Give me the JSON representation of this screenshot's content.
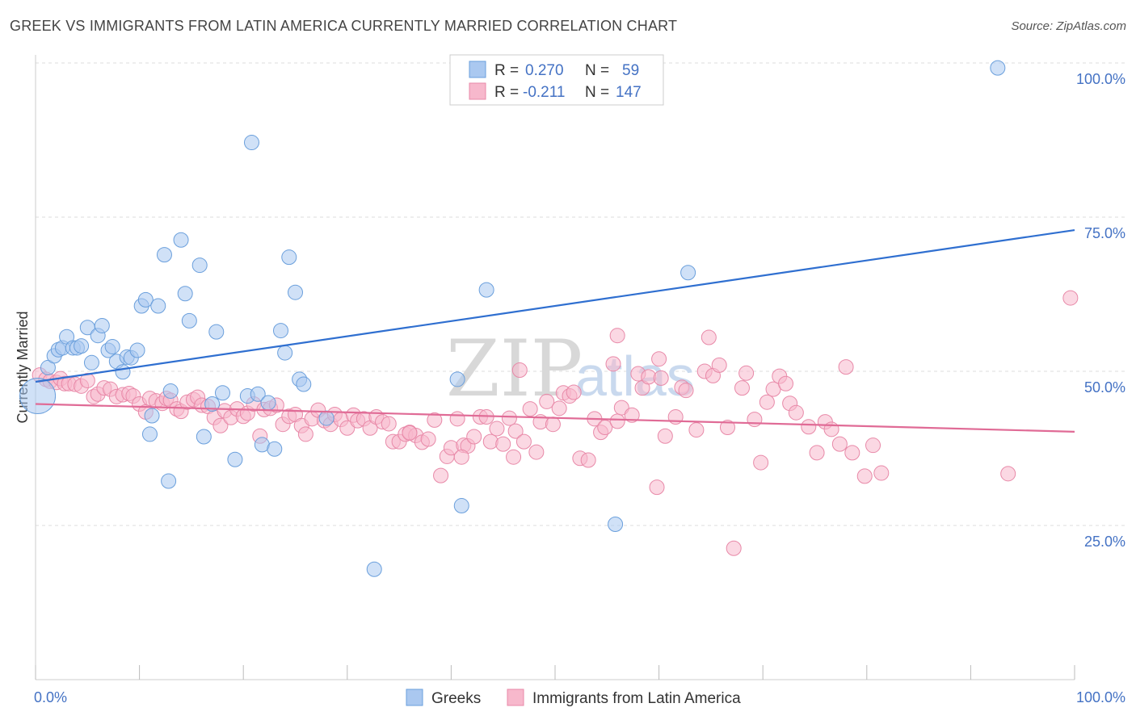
{
  "title": "GREEK VS IMMIGRANTS FROM LATIN AMERICA CURRENTLY MARRIED CORRELATION CHART",
  "source": "Source: ZipAtlas.com",
  "watermark": {
    "zip": "ZIP",
    "atlas": "atlas"
  },
  "legend_top": {
    "items": [
      {
        "r_label": "R =",
        "r_value": "0.270",
        "n_label": "N =",
        "n_value": "59",
        "color": "#aac8f0"
      },
      {
        "r_label": "R =",
        "r_value": "-0.211",
        "n_label": "N =",
        "n_value": "147",
        "color": "#f7b8cc"
      }
    ]
  },
  "chart_data": {
    "type": "scatter",
    "title": "GREEK VS IMMIGRANTS FROM LATIN AMERICA CURRENTLY MARRIED CORRELATION CHART",
    "xlabel": "",
    "ylabel": "Currently Married",
    "xlim": [
      0,
      100
    ],
    "ylim": [
      0,
      100
    ],
    "x_tick_labels": [
      "0.0%",
      "100.0%"
    ],
    "y_ticks": [
      {
        "value": 25,
        "label": "25.0%"
      },
      {
        "value": 50,
        "label": "50.0%"
      },
      {
        "value": 75,
        "label": "75.0%"
      },
      {
        "value": 100,
        "label": "100.0%"
      }
    ],
    "grid": true,
    "legend_position": "bottom",
    "series": [
      {
        "name": "Greeks",
        "color": "#aac8f0",
        "stroke": "#6a9fdc",
        "line_color": "#2f6fd0",
        "trend": {
          "x0": 0,
          "y0": 48.3,
          "x1": 100,
          "y1": 72.9
        },
        "points": [
          [
            0.2,
            46.0
          ],
          [
            1.2,
            50.6
          ],
          [
            1.8,
            52.5
          ],
          [
            2.2,
            53.5
          ],
          [
            2.6,
            53.8
          ],
          [
            3.0,
            55.6
          ],
          [
            3.6,
            53.8
          ],
          [
            4.0,
            53.8
          ],
          [
            4.4,
            54.1
          ],
          [
            5.0,
            57.1
          ],
          [
            5.4,
            51.4
          ],
          [
            6.0,
            55.8
          ],
          [
            6.4,
            57.4
          ],
          [
            7.0,
            53.4
          ],
          [
            7.4,
            54.0
          ],
          [
            7.8,
            51.6
          ],
          [
            8.4,
            49.9
          ],
          [
            8.8,
            52.3
          ],
          [
            9.2,
            52.2
          ],
          [
            9.8,
            53.4
          ],
          [
            10.2,
            60.6
          ],
          [
            10.6,
            61.6
          ],
          [
            11.2,
            42.8
          ],
          [
            11.0,
            39.8
          ],
          [
            11.8,
            60.6
          ],
          [
            12.4,
            68.9
          ],
          [
            12.8,
            32.2
          ],
          [
            13.0,
            46.8
          ],
          [
            14.0,
            71.3
          ],
          [
            14.4,
            62.6
          ],
          [
            14.8,
            58.2
          ],
          [
            15.8,
            67.2
          ],
          [
            16.2,
            39.4
          ],
          [
            17.0,
            44.7
          ],
          [
            17.4,
            56.4
          ],
          [
            18.0,
            46.5
          ],
          [
            19.2,
            35.7
          ],
          [
            20.4,
            46.0
          ],
          [
            20.8,
            87.1
          ],
          [
            21.4,
            46.3
          ],
          [
            21.8,
            38.1
          ],
          [
            22.4,
            44.9
          ],
          [
            23.0,
            37.4
          ],
          [
            23.6,
            56.6
          ],
          [
            24.0,
            53.0
          ],
          [
            24.4,
            68.5
          ],
          [
            25.0,
            62.8
          ],
          [
            25.4,
            48.7
          ],
          [
            25.8,
            47.9
          ],
          [
            28.0,
            42.4
          ],
          [
            32.6,
            17.9
          ],
          [
            40.6,
            48.7
          ],
          [
            41.0,
            28.2
          ],
          [
            43.4,
            63.2
          ],
          [
            55.8,
            25.2
          ],
          [
            62.8,
            66.0
          ],
          [
            56.8,
            100.0
          ],
          [
            92.6,
            99.2
          ]
        ]
      },
      {
        "name": "Immigrants from Latin America",
        "color": "#f7b8cc",
        "stroke": "#e889a8",
        "line_color": "#e06b96",
        "trend": {
          "x0": 0,
          "y0": 44.7,
          "x1": 100,
          "y1": 40.2
        },
        "points": [
          [
            0.4,
            49.4
          ],
          [
            1.0,
            48.7
          ],
          [
            1.4,
            48.4
          ],
          [
            2.0,
            48.2
          ],
          [
            2.4,
            48.8
          ],
          [
            2.8,
            48.0
          ],
          [
            3.2,
            48.0
          ],
          [
            3.8,
            47.9
          ],
          [
            4.4,
            47.6
          ],
          [
            5.0,
            48.5
          ],
          [
            5.6,
            45.9
          ],
          [
            6.0,
            46.3
          ],
          [
            6.6,
            47.3
          ],
          [
            7.2,
            47.1
          ],
          [
            7.8,
            45.9
          ],
          [
            8.4,
            46.2
          ],
          [
            9.0,
            46.4
          ],
          [
            9.4,
            46.0
          ],
          [
            10.0,
            44.7
          ],
          [
            10.6,
            43.4
          ],
          [
            11.0,
            45.6
          ],
          [
            11.6,
            45.2
          ],
          [
            12.2,
            44.8
          ],
          [
            12.6,
            45.6
          ],
          [
            13.0,
            45.3
          ],
          [
            13.6,
            43.9
          ],
          [
            14.0,
            43.5
          ],
          [
            14.6,
            45.0
          ],
          [
            15.2,
            45.4
          ],
          [
            15.6,
            45.8
          ],
          [
            16.0,
            44.5
          ],
          [
            16.6,
            44.3
          ],
          [
            17.2,
            42.5
          ],
          [
            17.8,
            41.2
          ],
          [
            18.2,
            43.6
          ],
          [
            18.8,
            42.5
          ],
          [
            19.4,
            43.9
          ],
          [
            20.0,
            42.7
          ],
          [
            20.4,
            43.2
          ],
          [
            21.0,
            44.7
          ],
          [
            21.6,
            39.5
          ],
          [
            22.0,
            43.8
          ],
          [
            22.6,
            44.0
          ],
          [
            23.2,
            44.5
          ],
          [
            23.8,
            41.4
          ],
          [
            24.4,
            42.7
          ],
          [
            25.0,
            43.0
          ],
          [
            25.6,
            41.2
          ],
          [
            26.0,
            39.8
          ],
          [
            26.6,
            42.3
          ],
          [
            27.2,
            43.7
          ],
          [
            27.8,
            42.0
          ],
          [
            28.4,
            41.4
          ],
          [
            28.8,
            43.0
          ],
          [
            29.4,
            42.2
          ],
          [
            30.0,
            40.8
          ],
          [
            30.6,
            42.9
          ],
          [
            31.0,
            42.0
          ],
          [
            31.6,
            42.3
          ],
          [
            32.2,
            40.8
          ],
          [
            32.8,
            42.6
          ],
          [
            33.4,
            41.8
          ],
          [
            34.0,
            41.5
          ],
          [
            34.4,
            38.6
          ],
          [
            35.0,
            38.6
          ],
          [
            35.6,
            39.8
          ],
          [
            36.0,
            40.1
          ],
          [
            36.6,
            39.6
          ],
          [
            37.2,
            38.5
          ],
          [
            37.8,
            39.0
          ],
          [
            38.4,
            42.1
          ],
          [
            39.0,
            33.1
          ],
          [
            39.6,
            36.2
          ],
          [
            40.0,
            37.6
          ],
          [
            40.6,
            42.3
          ],
          [
            41.2,
            38.0
          ],
          [
            41.6,
            37.9
          ],
          [
            42.2,
            39.4
          ],
          [
            42.8,
            42.6
          ],
          [
            43.4,
            42.6
          ],
          [
            43.8,
            38.6
          ],
          [
            44.4,
            40.7
          ],
          [
            45.0,
            38.2
          ],
          [
            45.6,
            42.4
          ],
          [
            46.2,
            40.3
          ],
          [
            46.6,
            50.2
          ],
          [
            47.0,
            38.6
          ],
          [
            47.6,
            43.9
          ],
          [
            48.2,
            36.9
          ],
          [
            48.6,
            41.8
          ],
          [
            49.2,
            45.1
          ],
          [
            49.8,
            41.4
          ],
          [
            50.4,
            44.0
          ],
          [
            50.8,
            46.5
          ],
          [
            51.4,
            46.0
          ],
          [
            51.8,
            46.6
          ],
          [
            52.4,
            35.9
          ],
          [
            53.2,
            35.6
          ],
          [
            53.8,
            42.3
          ],
          [
            54.4,
            40.1
          ],
          [
            54.8,
            40.9
          ],
          [
            55.6,
            51.2
          ],
          [
            56.0,
            41.9
          ],
          [
            56.4,
            44.1
          ],
          [
            57.4,
            42.9
          ],
          [
            58.0,
            49.6
          ],
          [
            58.4,
            47.3
          ],
          [
            59.0,
            49.1
          ],
          [
            59.8,
            31.2
          ],
          [
            60.2,
            48.9
          ],
          [
            60.6,
            39.5
          ],
          [
            61.6,
            42.6
          ],
          [
            62.2,
            47.4
          ],
          [
            62.6,
            46.9
          ],
          [
            63.6,
            40.5
          ],
          [
            64.4,
            50.0
          ],
          [
            64.8,
            55.5
          ],
          [
            65.2,
            49.3
          ],
          [
            65.8,
            51.0
          ],
          [
            66.6,
            40.9
          ],
          [
            67.2,
            21.3
          ],
          [
            68.0,
            47.3
          ],
          [
            68.4,
            49.7
          ],
          [
            69.2,
            42.2
          ],
          [
            69.8,
            35.2
          ],
          [
            70.4,
            45.0
          ],
          [
            71.0,
            47.1
          ],
          [
            71.6,
            49.2
          ],
          [
            72.2,
            48.0
          ],
          [
            72.6,
            44.8
          ],
          [
            73.2,
            43.3
          ],
          [
            74.4,
            41.0
          ],
          [
            75.2,
            36.8
          ],
          [
            76.0,
            41.8
          ],
          [
            76.6,
            40.6
          ],
          [
            77.4,
            38.2
          ],
          [
            78.0,
            50.7
          ],
          [
            78.6,
            36.8
          ],
          [
            79.8,
            33.0
          ],
          [
            80.6,
            38.0
          ],
          [
            81.4,
            33.5
          ],
          [
            93.6,
            33.4
          ],
          [
            99.6,
            61.9
          ],
          [
            60.0,
            52.0
          ],
          [
            56.0,
            55.8
          ],
          [
            46.0,
            36.1
          ],
          [
            41.0,
            36.1
          ],
          [
            36.0,
            40.0
          ]
        ]
      }
    ]
  }
}
